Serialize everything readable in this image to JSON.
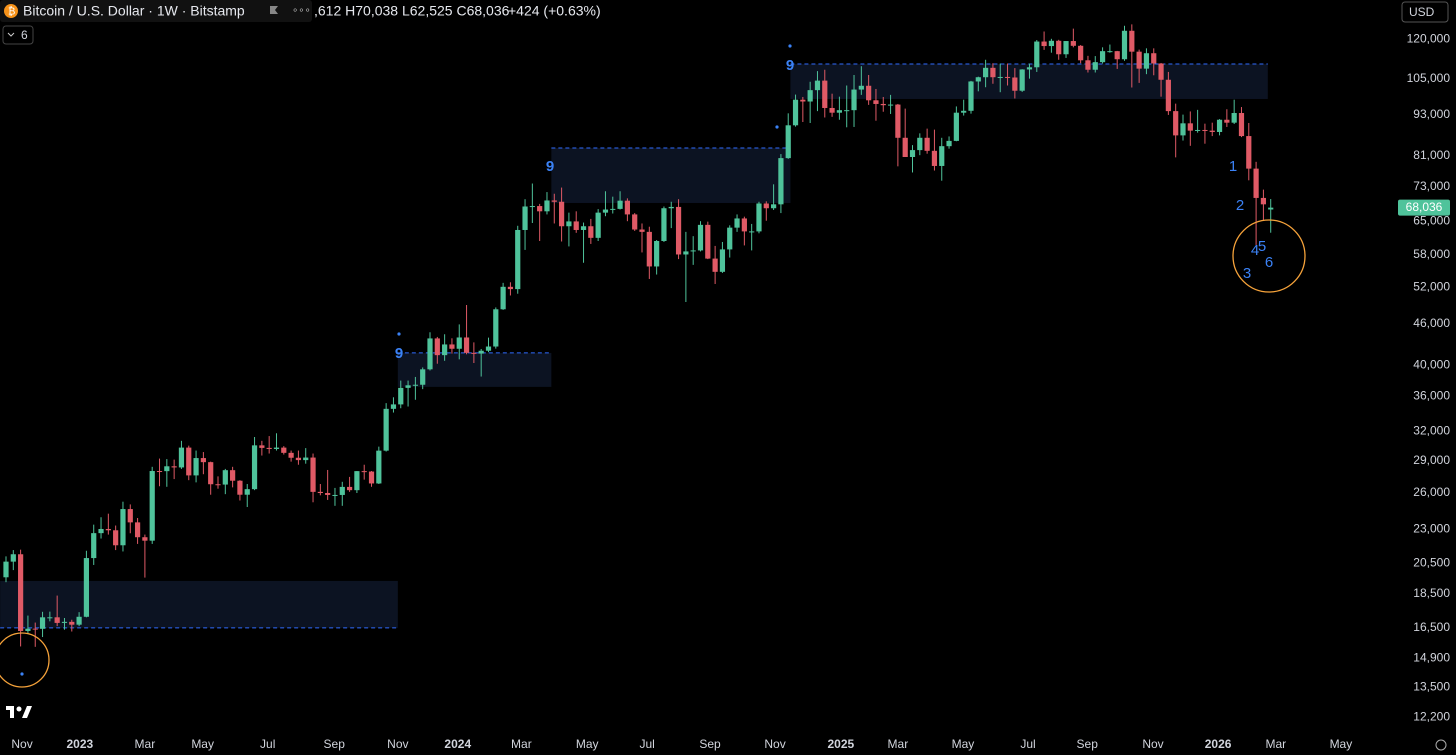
{
  "chart_data": {
    "type": "candlestick",
    "header": {
      "symbol": "Bitcoin / U.S. Dollar · 1W · Bitstamp",
      "ohlc": ",612 H70,038 L62,525 C68,036",
      "change": "+424 (+0.63%)",
      "indicator_count": "6",
      "currency": "USD"
    },
    "up_color": "#4fc39b",
    "down_color": "#e05a66",
    "log_scale": true,
    "grid": false,
    "ylim": [
      11500,
      137000
    ],
    "xlim": [
      -0.82,
      190
    ],
    "yticks": [
      {
        "value": 120000,
        "label": "120,000"
      },
      {
        "value": 105000,
        "label": "105,000"
      },
      {
        "value": 93000,
        "label": "93,000"
      },
      {
        "value": 81000,
        "label": "81,000"
      },
      {
        "value": 73000,
        "label": "73,000"
      },
      {
        "value": 65000,
        "label": "65,000"
      },
      {
        "value": 58000,
        "label": "58,000"
      },
      {
        "value": 52000,
        "label": "52,000"
      },
      {
        "value": 46000,
        "label": "46,000"
      },
      {
        "value": 40000,
        "label": "40,000"
      },
      {
        "value": 36000,
        "label": "36,000"
      },
      {
        "value": 32000,
        "label": "32,000"
      },
      {
        "value": 29000,
        "label": "29,000"
      },
      {
        "value": 26000,
        "label": "26,000"
      },
      {
        "value": 23000,
        "label": "23,000"
      },
      {
        "value": 20500,
        "label": "20,500"
      },
      {
        "value": 18500,
        "label": "18,500"
      },
      {
        "value": 16500,
        "label": "16,500"
      },
      {
        "value": 14900,
        "label": "14,900"
      },
      {
        "value": 13500,
        "label": "13,500"
      },
      {
        "value": 12200,
        "label": "12,200"
      }
    ],
    "xticks": [
      {
        "value": 2.2,
        "label": "Nov"
      },
      {
        "value": 10.1,
        "label": "2023"
      },
      {
        "value": 19.0,
        "label": "Mar"
      },
      {
        "value": 26.9,
        "label": "May"
      },
      {
        "value": 35.8,
        "label": "Jul"
      },
      {
        "value": 44.9,
        "label": "Sep"
      },
      {
        "value": 53.6,
        "label": "Nov"
      },
      {
        "value": 61.8,
        "label": "2024"
      },
      {
        "value": 70.5,
        "label": "Mar"
      },
      {
        "value": 79.5,
        "label": "May"
      },
      {
        "value": 87.7,
        "label": "Jul"
      },
      {
        "value": 96.3,
        "label": "Sep"
      },
      {
        "value": 105.2,
        "label": "Nov"
      },
      {
        "value": 114.2,
        "label": "2025"
      },
      {
        "value": 122.0,
        "label": "Mar"
      },
      {
        "value": 130.9,
        "label": "May"
      },
      {
        "value": 139.8,
        "label": "Jul"
      },
      {
        "value": 147.9,
        "label": "Sep"
      },
      {
        "value": 156.9,
        "label": "Nov"
      },
      {
        "value": 165.8,
        "label": "2026"
      },
      {
        "value": 173.7,
        "label": "Mar"
      },
      {
        "value": 182.6,
        "label": "May"
      }
    ],
    "price_tag": {
      "value": 68036,
      "label": "68,036"
    },
    "zone_color": "#0c1322",
    "zone_line_color": "#2f6bff",
    "zones": [
      {
        "start": -0.8,
        "end": 53.6,
        "low": 16500,
        "high": 19330,
        "line": 16500
      },
      {
        "start": 53.6,
        "end": 74.6,
        "low": 37180,
        "high": 41690,
        "line": 41690
      },
      {
        "start": 74.6,
        "end": 107.3,
        "low": 69110,
        "high": 83190,
        "line": 83190
      },
      {
        "start": 107.3,
        "end": 172.6,
        "low": 98130,
        "high": 110400,
        "line": 110400
      }
    ],
    "annotations": [
      "9",
      "9",
      "9",
      "1",
      "2",
      "3",
      "4",
      "5",
      "6"
    ],
    "values": [
      [
        19570,
        21000,
        19250,
        20630
      ],
      [
        20630,
        21450,
        20050,
        21150
      ],
      [
        21150,
        21480,
        15500,
        16330
      ],
      [
        16330,
        17200,
        16200,
        16460
      ],
      [
        16460,
        16800,
        15480,
        16450
      ],
      [
        16450,
        17420,
        16000,
        17100
      ],
      [
        17100,
        17430,
        16870,
        17100
      ],
      [
        17100,
        18400,
        16600,
        16780
      ],
      [
        16780,
        17060,
        16400,
        16840
      ],
      [
        16840,
        16960,
        16300,
        16680
      ],
      [
        16680,
        17400,
        16600,
        17130
      ],
      [
        17130,
        21400,
        17100,
        20880
      ],
      [
        20880,
        23370,
        20400,
        22710
      ],
      [
        22710,
        23960,
        22300,
        23030
      ],
      [
        23030,
        24250,
        22600,
        22930
      ],
      [
        22930,
        23300,
        21450,
        21800
      ],
      [
        21800,
        25250,
        21350,
        24630
      ],
      [
        24630,
        25020,
        22700,
        23550
      ],
      [
        23550,
        23900,
        21900,
        22400
      ],
      [
        22400,
        22600,
        19550,
        22140
      ],
      [
        22140,
        28400,
        21900,
        28000
      ],
      [
        28000,
        29200,
        26600,
        27990
      ],
      [
        27990,
        29150,
        26550,
        28450
      ],
      [
        28450,
        29100,
        27250,
        28340
      ],
      [
        28340,
        31000,
        28200,
        30300
      ],
      [
        30300,
        30500,
        27150,
        27590
      ],
      [
        27590,
        30000,
        26950,
        29250
      ],
      [
        29250,
        29850,
        27700,
        28850
      ],
      [
        28850,
        28900,
        25850,
        26780
      ],
      [
        26780,
        27500,
        26380,
        26750
      ],
      [
        26750,
        28200,
        25900,
        28080
      ],
      [
        28080,
        28400,
        26500,
        27100
      ],
      [
        27100,
        27150,
        25350,
        25850
      ],
      [
        25850,
        26800,
        24800,
        26340
      ],
      [
        26340,
        31400,
        26250,
        30530
      ],
      [
        30530,
        31000,
        29500,
        30270
      ],
      [
        30270,
        31500,
        29700,
        30160
      ],
      [
        30160,
        31800,
        30000,
        30300
      ],
      [
        30300,
        30450,
        29600,
        29770
      ],
      [
        29770,
        30000,
        28900,
        29280
      ],
      [
        29280,
        30000,
        28600,
        29050
      ],
      [
        29050,
        30250,
        28700,
        29300
      ],
      [
        29300,
        29700,
        25200,
        26100
      ],
      [
        26100,
        26800,
        25800,
        26000
      ],
      [
        26000,
        28100,
        25400,
        25830
      ],
      [
        25830,
        26450,
        24900,
        25830
      ],
      [
        25830,
        27000,
        24900,
        26540
      ],
      [
        26540,
        27450,
        26100,
        26250
      ],
      [
        26250,
        28000,
        26000,
        27990
      ],
      [
        27990,
        28600,
        27200,
        27950
      ],
      [
        27950,
        28000,
        26550,
        26850
      ],
      [
        26850,
        30400,
        26800,
        29990
      ],
      [
        29990,
        35200,
        29900,
        34530
      ],
      [
        34530,
        35900,
        34100,
        35050
      ],
      [
        35050,
        37980,
        34600,
        37060
      ],
      [
        37060,
        37980,
        34800,
        37380
      ],
      [
        37380,
        38450,
        35600,
        37450
      ],
      [
        37450,
        39700,
        36900,
        39450
      ],
      [
        39450,
        44700,
        39300,
        43780
      ],
      [
        43780,
        44000,
        40200,
        41380
      ],
      [
        41380,
        44400,
        40600,
        42900
      ],
      [
        42900,
        43800,
        41600,
        42280
      ],
      [
        42280,
        45900,
        40800,
        43920
      ],
      [
        43920,
        49000,
        41500,
        41700
      ],
      [
        41700,
        43200,
        40300,
        41600
      ],
      [
        41600,
        42250,
        38500,
        42000
      ],
      [
        42000,
        43900,
        41800,
        42600
      ],
      [
        42600,
        48600,
        42300,
        48300
      ],
      [
        48300,
        52800,
        48200,
        52100
      ],
      [
        52100,
        52900,
        50600,
        51700
      ],
      [
        51700,
        64000,
        50900,
        63100
      ],
      [
        63100,
        70000,
        59000,
        68300
      ],
      [
        68300,
        73800,
        64600,
        68400
      ],
      [
        68400,
        68900,
        60800,
        67200
      ],
      [
        67200,
        71700,
        66500,
        69700
      ],
      [
        69700,
        71300,
        64500,
        69400
      ],
      [
        69400,
        72800,
        60700,
        63900
      ],
      [
        63900,
        66900,
        59700,
        64950
      ],
      [
        64950,
        67200,
        62500,
        63100
      ],
      [
        63100,
        64700,
        56500,
        63900
      ],
      [
        63900,
        65500,
        60200,
        61450
      ],
      [
        61450,
        67700,
        60800,
        66900
      ],
      [
        66900,
        71900,
        66100,
        67600
      ],
      [
        67600,
        70600,
        66700,
        67750
      ],
      [
        67750,
        71900,
        67600,
        69650
      ],
      [
        69650,
        70200,
        65000,
        66500
      ],
      [
        66500,
        66800,
        62900,
        63200
      ],
      [
        63200,
        64500,
        58500,
        62700
      ],
      [
        62700,
        63800,
        53500,
        55800
      ],
      [
        55800,
        61000,
        54300,
        60800
      ],
      [
        60800,
        68300,
        60600,
        67900
      ],
      [
        67900,
        69400,
        63500,
        68200
      ],
      [
        68200,
        70000,
        57200,
        58100
      ],
      [
        58100,
        62700,
        49500,
        58700
      ],
      [
        58700,
        61800,
        56100,
        58900
      ],
      [
        58900,
        65000,
        58700,
        64200
      ],
      [
        64200,
        64900,
        57200,
        57300
      ],
      [
        57300,
        59800,
        52600,
        54800
      ],
      [
        54800,
        60600,
        54600,
        59100
      ],
      [
        59100,
        64100,
        57500,
        63600
      ],
      [
        63600,
        66500,
        62700,
        65600
      ],
      [
        65600,
        66000,
        59900,
        62800
      ],
      [
        62800,
        64400,
        58900,
        62800
      ],
      [
        62800,
        69400,
        62400,
        69000
      ],
      [
        69000,
        69500,
        65100,
        67900
      ],
      [
        67900,
        73600,
        67500,
        68800
      ],
      [
        68800,
        81500,
        66800,
        80400
      ],
      [
        80400,
        93500,
        80200,
        89800
      ],
      [
        89800,
        99600,
        89400,
        97900
      ],
      [
        97900,
        98800,
        90800,
        97300
      ],
      [
        97300,
        104000,
        90500,
        101100
      ],
      [
        101100,
        107800,
        94200,
        104400
      ],
      [
        104400,
        108300,
        92200,
        95200
      ],
      [
        95200,
        99900,
        92400,
        93700
      ],
      [
        93700,
        98900,
        91500,
        94500
      ],
      [
        94500,
        102700,
        89200,
        94500
      ],
      [
        94500,
        106400,
        89300,
        101300
      ],
      [
        101300,
        109600,
        99500,
        102600
      ],
      [
        102600,
        106400,
        96200,
        97700
      ],
      [
        97700,
        101500,
        91200,
        96500
      ],
      [
        96500,
        98800,
        94000,
        96100
      ],
      [
        96100,
        99500,
        93300,
        96300
      ],
      [
        96300,
        96500,
        78200,
        86100
      ],
      [
        86100,
        95000,
        81000,
        80700
      ],
      [
        80700,
        84000,
        76600,
        82600
      ],
      [
        82600,
        87400,
        81200,
        86100
      ],
      [
        86100,
        88800,
        81600,
        82400
      ],
      [
        82400,
        88500,
        77100,
        78300
      ],
      [
        78300,
        86100,
        74500,
        83700
      ],
      [
        83700,
        86500,
        83000,
        85200
      ],
      [
        85200,
        95700,
        85100,
        93700
      ],
      [
        93700,
        97900,
        92800,
        94300
      ],
      [
        94300,
        104300,
        93400,
        104100
      ],
      [
        104100,
        105800,
        100700,
        105600
      ],
      [
        105600,
        112000,
        102100,
        109000
      ],
      [
        109000,
        110700,
        103300,
        105600
      ],
      [
        105600,
        110600,
        100400,
        105700
      ],
      [
        105700,
        110600,
        102700,
        105500
      ],
      [
        105500,
        108900,
        98300,
        100900
      ],
      [
        100900,
        108500,
        100500,
        108400
      ],
      [
        108400,
        110600,
        105100,
        109200
      ],
      [
        109200,
        119700,
        107500,
        119100
      ],
      [
        119100,
        123200,
        115800,
        117300
      ],
      [
        117300,
        120200,
        114700,
        119400
      ],
      [
        119400,
        119800,
        112000,
        114100
      ],
      [
        114100,
        119300,
        112700,
        119300
      ],
      [
        119300,
        124400,
        116800,
        117400
      ],
      [
        117400,
        117700,
        110700,
        111800
      ],
      [
        111800,
        113500,
        107300,
        108300
      ],
      [
        108300,
        113400,
        107300,
        111100
      ],
      [
        111100,
        116800,
        110600,
        115300
      ],
      [
        115300,
        117900,
        114700,
        115300
      ],
      [
        115300,
        115400,
        108600,
        112200
      ],
      [
        112200,
        125600,
        111600,
        123500
      ],
      [
        123500,
        126200,
        102000,
        115100
      ],
      [
        115100,
        115900,
        103600,
        108700
      ],
      [
        108700,
        116400,
        106700,
        114500
      ],
      [
        114500,
        116400,
        106300,
        110600
      ],
      [
        110600,
        110800,
        98900,
        104700
      ],
      [
        104700,
        107500,
        93000,
        94200
      ],
      [
        94200,
        96600,
        80600,
        86800
      ],
      [
        86800,
        93100,
        85300,
        90400
      ],
      [
        90400,
        94100,
        83800,
        88200
      ],
      [
        88200,
        94600,
        87600,
        88400
      ],
      [
        88400,
        90300,
        84400,
        88200
      ],
      [
        88200,
        90600,
        86600,
        87800
      ],
      [
        87800,
        91700,
        86800,
        91500
      ],
      [
        91500,
        94800,
        89300,
        90600
      ],
      [
        90600,
        97900,
        90200,
        93600
      ],
      [
        93600,
        95500,
        86300,
        86600
      ],
      [
        86600,
        90500,
        74600,
        77600
      ],
      [
        77600,
        79400,
        60000,
        70300
      ],
      [
        70300,
        72300,
        65100,
        68800
      ],
      [
        67612,
        70038,
        62525,
        68036
      ]
    ]
  }
}
